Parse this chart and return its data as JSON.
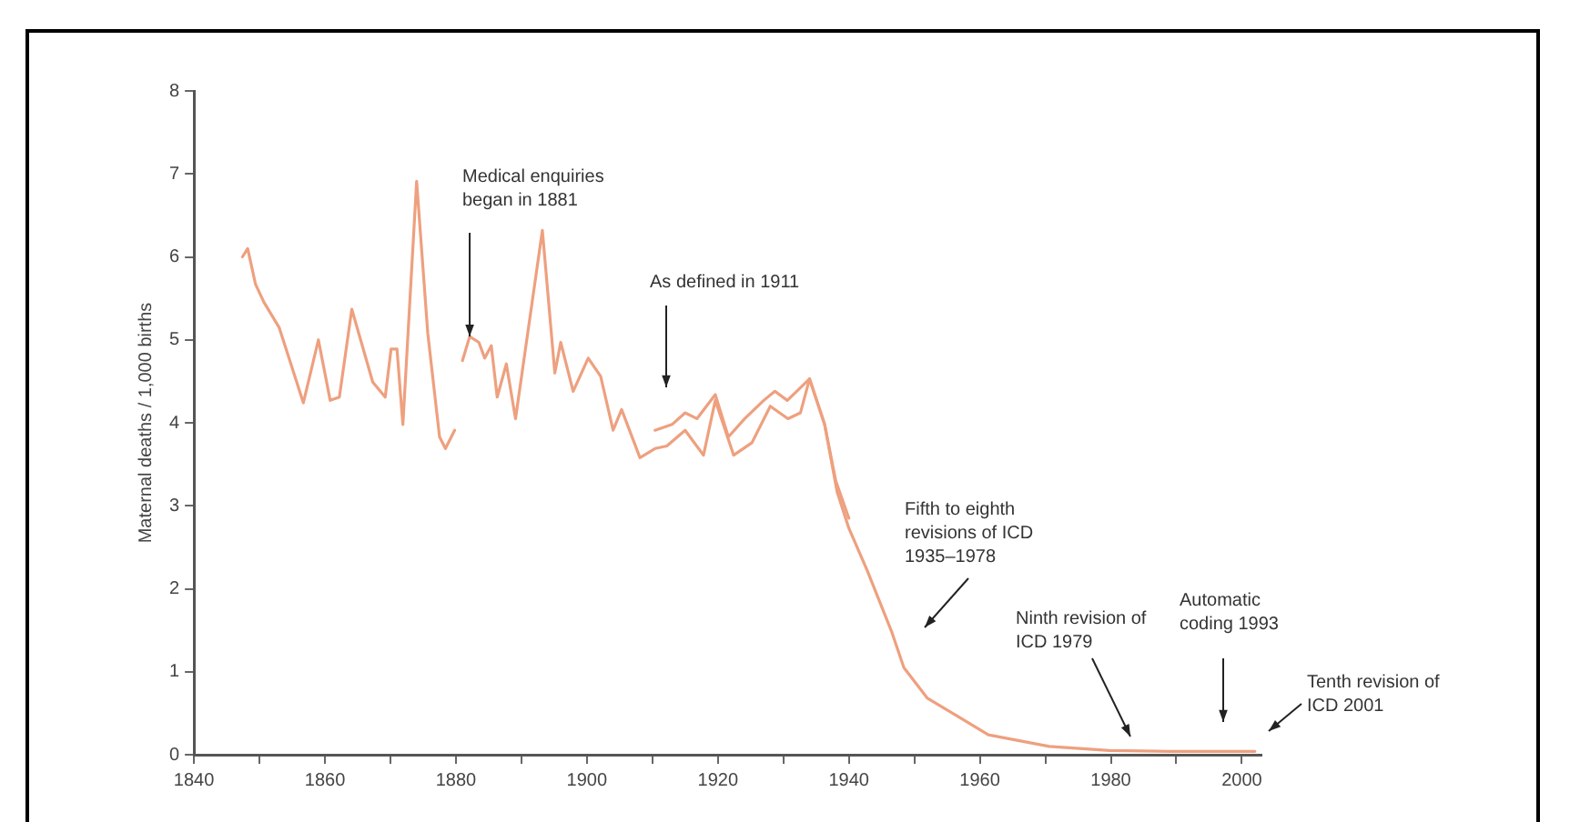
{
  "chart_data": {
    "type": "line",
    "ylabel": "Maternal deaths / 1,000 births",
    "xlim": [
      1840,
      2003
    ],
    "ylim": [
      0,
      8
    ],
    "xticks": [
      1840,
      {
        "value": 1850,
        "label": null
      },
      1860,
      {
        "value": 1870,
        "label": null
      },
      1880,
      {
        "value": 1890,
        "label": null
      },
      1900,
      {
        "value": 1910,
        "label": null
      },
      1920,
      {
        "value": 1930,
        "label": null
      },
      1940,
      {
        "value": 1950,
        "label": null
      },
      1960,
      {
        "value": 1970,
        "label": null
      },
      1980,
      {
        "value": 1990,
        "label": null
      },
      2000
    ],
    "yticks": [
      0,
      1,
      2,
      3,
      4,
      5,
      6,
      7,
      8
    ],
    "grid": false,
    "legend": false,
    "marker": "none",
    "line_style": "solid",
    "series": [
      {
        "color": "#eea07f",
        "x": [
          1847.4,
          1848.2,
          1849.4,
          1850.7,
          1853,
          1854.8,
          1856.7,
          1859,
          1860.8,
          1862.2,
          1864.1,
          1867.3,
          1869.2,
          1870.1,
          1871,
          1871.9,
          1874,
          1875.7,
          1877.5,
          1878.4,
          1879.8,
          1880.4,
          1881,
          1882.1,
          1883.5,
          1884.4,
          1885.4,
          1886.3,
          1887.7,
          1889.1,
          1893.2,
          1895.1,
          1896,
          1897.9,
          1900.2,
          1902.1,
          1904,
          1905.3,
          1908.1,
          1910.4,
          1912.2,
          1915,
          1917.8,
          1919.6,
          1922.4,
          1925.2,
          1928,
          1930.7,
          1932.6,
          1934,
          1936.3,
          1938.2,
          1940,
          1942.8,
          1946.5,
          1948.4,
          1952,
          1956.7,
          1961.3,
          1970.6,
          1979.8,
          1989,
          2000.2,
          2002
        ],
        "values": [
          6.0,
          6.1,
          5.67,
          5.45,
          5.15,
          4.71,
          4.24,
          5.0,
          4.27,
          4.31,
          5.37,
          4.49,
          4.31,
          4.89,
          4.89,
          3.98,
          6.91,
          5.08,
          3.83,
          3.69,
          3.91,
          null,
          4.75,
          5.04,
          4.97,
          4.78,
          4.93,
          4.31,
          4.71,
          4.05,
          6.32,
          4.6,
          4.97,
          4.38,
          4.78,
          4.56,
          3.91,
          4.16,
          3.58,
          3.69,
          3.72,
          3.91,
          3.61,
          4.27,
          3.61,
          3.76,
          4.2,
          4.05,
          4.12,
          4.53,
          3.98,
          3.17,
          2.73,
          2.22,
          1.49,
          1.05,
          0.68,
          0.46,
          0.24,
          0.1,
          0.05,
          0.04,
          0.04,
          0.04
        ]
      },
      {
        "color": "#eea07f",
        "x": [
          1910.4,
          1913,
          1915,
          1916.8,
          1919.6,
          1921.6,
          1924.1,
          1927,
          1928.7,
          1930.6,
          1934,
          1936.3,
          1938,
          1940
        ],
        "values": [
          3.91,
          3.98,
          4.12,
          4.05,
          4.34,
          3.83,
          4.05,
          4.27,
          4.38,
          4.27,
          4.53,
          3.98,
          3.3,
          2.85
        ]
      }
    ],
    "annotations": [
      {
        "text": "Medical enquiries began in 1881",
        "x": 1882.1,
        "y": 5.04
      },
      "As defined in 1911",
      "Fifth to eighth revisions of ICD 1935–1978",
      "Ninth revision of ICD 1979",
      "Automatic coding 1993",
      "Tenth revision of ICD 2001"
    ]
  }
}
